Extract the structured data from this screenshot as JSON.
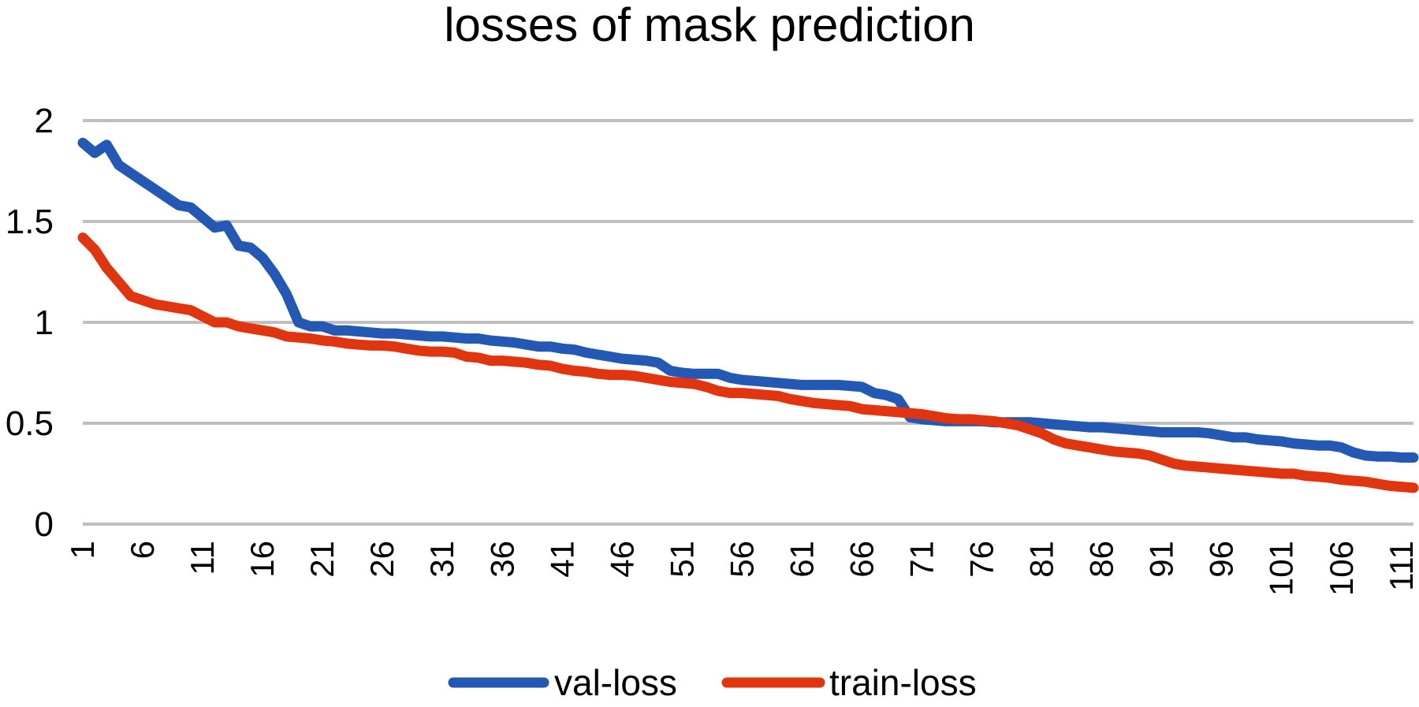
{
  "chart_data": {
    "type": "line",
    "title": "losses of mask prediction",
    "xlabel": "",
    "ylabel": "",
    "ylim": [
      0,
      2
    ],
    "yticks": [
      "0",
      "0.5",
      "1",
      "1.5",
      "2"
    ],
    "x_start": 1,
    "x_end": 112,
    "xtick_labels": [
      "1",
      "6",
      "11",
      "16",
      "21",
      "26",
      "31",
      "36",
      "41",
      "46",
      "51",
      "56",
      "61",
      "66",
      "71",
      "76",
      "81",
      "86",
      "91",
      "96",
      "101",
      "106",
      "111"
    ],
    "grid": true,
    "legend": "bottom",
    "series": [
      {
        "name": "val-loss",
        "color": "#2358b5",
        "values": [
          1.89,
          1.84,
          1.88,
          1.78,
          1.74,
          1.7,
          1.66,
          1.62,
          1.58,
          1.57,
          1.52,
          1.47,
          1.48,
          1.38,
          1.37,
          1.32,
          1.24,
          1.14,
          1.0,
          0.98,
          0.98,
          0.96,
          0.96,
          0.955,
          0.95,
          0.945,
          0.945,
          0.94,
          0.935,
          0.93,
          0.93,
          0.925,
          0.92,
          0.92,
          0.91,
          0.905,
          0.9,
          0.89,
          0.88,
          0.88,
          0.87,
          0.865,
          0.85,
          0.84,
          0.83,
          0.82,
          0.815,
          0.81,
          0.8,
          0.76,
          0.75,
          0.745,
          0.745,
          0.745,
          0.725,
          0.715,
          0.71,
          0.705,
          0.7,
          0.695,
          0.69,
          0.69,
          0.69,
          0.69,
          0.685,
          0.68,
          0.65,
          0.64,
          0.62,
          0.53,
          0.52,
          0.515,
          0.51,
          0.51,
          0.51,
          0.51,
          0.505,
          0.505,
          0.505,
          0.505,
          0.5,
          0.495,
          0.49,
          0.485,
          0.48,
          0.48,
          0.475,
          0.47,
          0.465,
          0.46,
          0.455,
          0.455,
          0.455,
          0.455,
          0.45,
          0.44,
          0.43,
          0.43,
          0.42,
          0.415,
          0.41,
          0.4,
          0.395,
          0.39,
          0.39,
          0.38,
          0.355,
          0.34,
          0.335,
          0.335,
          0.33,
          0.33
        ]
      },
      {
        "name": "train-loss",
        "color": "#e0350e",
        "values": [
          1.42,
          1.36,
          1.27,
          1.2,
          1.13,
          1.11,
          1.09,
          1.08,
          1.07,
          1.06,
          1.03,
          1.0,
          1.0,
          0.98,
          0.97,
          0.96,
          0.95,
          0.93,
          0.925,
          0.92,
          0.91,
          0.905,
          0.895,
          0.89,
          0.885,
          0.885,
          0.88,
          0.87,
          0.86,
          0.855,
          0.855,
          0.85,
          0.83,
          0.825,
          0.81,
          0.81,
          0.805,
          0.8,
          0.79,
          0.785,
          0.77,
          0.76,
          0.755,
          0.745,
          0.74,
          0.74,
          0.735,
          0.725,
          0.715,
          0.705,
          0.7,
          0.695,
          0.68,
          0.66,
          0.65,
          0.65,
          0.645,
          0.64,
          0.635,
          0.62,
          0.61,
          0.6,
          0.595,
          0.59,
          0.585,
          0.57,
          0.565,
          0.56,
          0.555,
          0.55,
          0.545,
          0.535,
          0.525,
          0.52,
          0.52,
          0.515,
          0.51,
          0.5,
          0.49,
          0.47,
          0.45,
          0.42,
          0.4,
          0.39,
          0.38,
          0.37,
          0.36,
          0.355,
          0.35,
          0.34,
          0.32,
          0.3,
          0.29,
          0.285,
          0.28,
          0.275,
          0.27,
          0.265,
          0.26,
          0.255,
          0.25,
          0.25,
          0.24,
          0.235,
          0.23,
          0.22,
          0.215,
          0.21,
          0.2,
          0.19,
          0.185,
          0.18
        ]
      }
    ]
  }
}
